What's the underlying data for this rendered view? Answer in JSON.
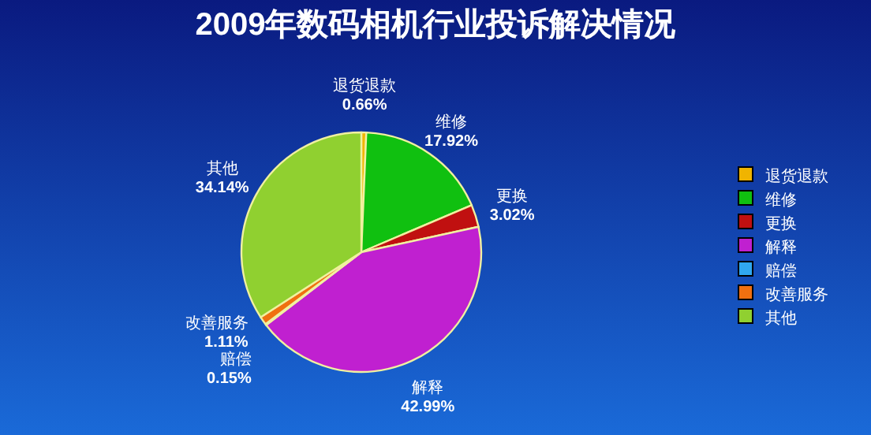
{
  "chart_data": {
    "type": "pie",
    "title": "2009年数码相机行业投诉解决情况",
    "categories": [
      "退货退款",
      "维修",
      "更换",
      "解释",
      "赔偿",
      "改善服务",
      "其他"
    ],
    "values": [
      0.66,
      17.92,
      3.02,
      42.99,
      0.15,
      1.11,
      34.14
    ],
    "value_labels": [
      "0.66%",
      "17.92%",
      "3.02%",
      "42.99%",
      "0.15%",
      "1.11%",
      "34.14%"
    ],
    "colors": [
      "#f0b400",
      "#10c010",
      "#c01010",
      "#c020d0",
      "#30a8f0",
      "#f07010",
      "#90d030"
    ],
    "legend": "right"
  }
}
